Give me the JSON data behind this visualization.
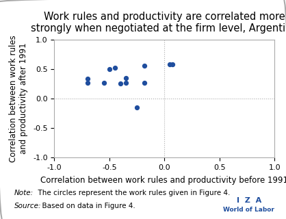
{
  "title": "Work rules and productivity are correlated more\nstrongly when negotiated at the firm level, Argentina",
  "xlabel": "Correlation between work rules and productivity before 1991",
  "ylabel": "Correlation between work rules\nand productivity after 1991",
  "xlim": [
    -1.0,
    1.0
  ],
  "ylim": [
    -1.0,
    1.0
  ],
  "xticks": [
    -1.0,
    -0.5,
    0.0,
    0.5,
    1.0
  ],
  "yticks": [
    -1.0,
    -0.5,
    0.0,
    0.5,
    1.0
  ],
  "scatter_x": [
    -0.7,
    -0.7,
    -0.55,
    -0.5,
    -0.45,
    -0.4,
    -0.35,
    -0.35,
    -0.25,
    -0.18,
    -0.18,
    0.05,
    0.07
  ],
  "scatter_y": [
    0.27,
    0.33,
    0.27,
    0.5,
    0.52,
    0.25,
    0.35,
    0.27,
    -0.15,
    0.56,
    0.27,
    0.58,
    0.58
  ],
  "dot_color": "#1f4e9e",
  "dot_size": 18,
  "note_text_italic": "Note:",
  "note_text_normal": "  The circles represent the work rules given in Figure 4.",
  "source_text_italic": "Source:",
  "source_text_normal": "  Based on data in Figure 4.",
  "bg_color": "#ffffff",
  "border_color": "#aaaaaa",
  "grid_color": "#aaaaaa",
  "title_fontsize": 10.5,
  "axis_label_fontsize": 8.5,
  "tick_fontsize": 8,
  "note_fontsize": 7.5,
  "iza_text": "I  Z  A",
  "iza_subtext": "World of Labor",
  "iza_color": "#1f4e9e"
}
